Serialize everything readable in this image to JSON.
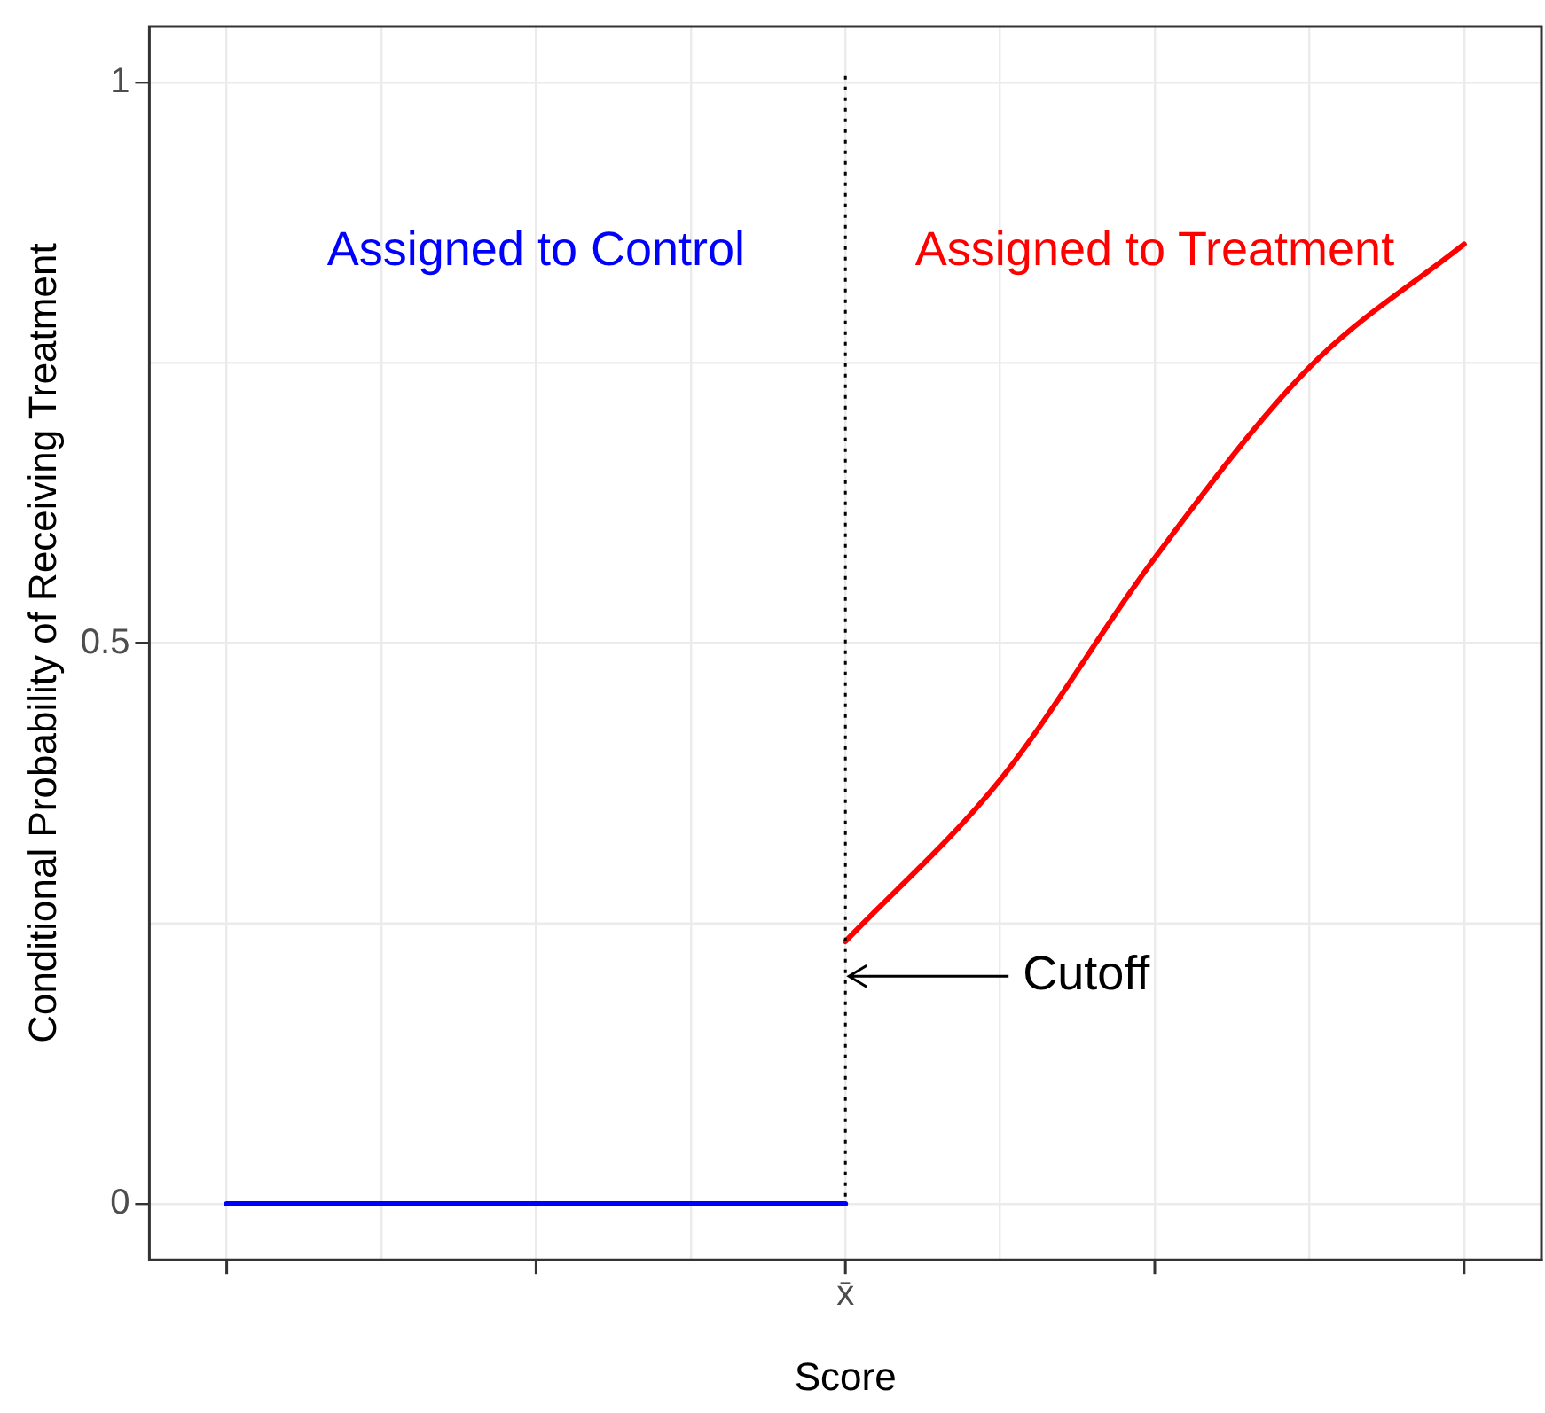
{
  "chart_data": {
    "type": "line",
    "xlabel": "Score",
    "ylabel": "Conditional Probability of Receiving Treatment",
    "categories": [
      null,
      null,
      null,
      null,
      null,
      null,
      null,
      null,
      null
    ],
    "series": [
      {
        "name": "Assigned to Control",
        "color": "#0000ff",
        "values": [
          0,
          0,
          0,
          0,
          0,
          null,
          null,
          null,
          null
        ]
      },
      {
        "name": "Assigned to Treatment",
        "color": "#ff0000",
        "values": [
          null,
          null,
          null,
          null,
          0.234,
          0.378,
          0.576,
          0.746,
          0.856
        ]
      }
    ],
    "ylim": [
      -0.05,
      1.05
    ],
    "yticks": [
      0,
      0.5,
      1
    ],
    "annotations": [
      "x̄",
      "Cutoff"
    ],
    "grid": true,
    "legend": false,
    "marker": "none",
    "line_style": "solid"
  }
}
